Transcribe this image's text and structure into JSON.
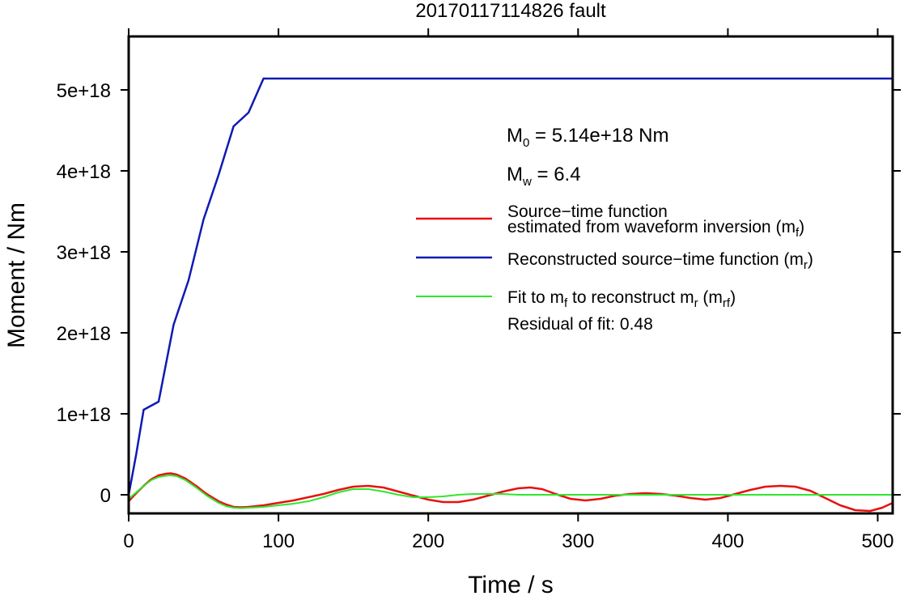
{
  "chart_data": {
    "type": "line",
    "title": "20170117114826 fault",
    "xlabel": "Time / s",
    "ylabel": "Moment / Nm",
    "xlim": [
      0,
      510
    ],
    "ylim": [
      -2.3e+17,
      5.66e+18
    ],
    "xticks": [
      0,
      100,
      200,
      300,
      400,
      500
    ],
    "xtick_labels": [
      "0",
      "100",
      "200",
      "300",
      "400",
      "500"
    ],
    "yticks": [
      0,
      1e+18,
      2e+18,
      3e+18,
      4e+18,
      5e+18
    ],
    "ytick_labels": [
      "0",
      "1e+18",
      "2e+18",
      "3e+18",
      "4e+18",
      "5e+18"
    ],
    "grid": false,
    "legend_position": "right",
    "annotations": {
      "m0": {
        "lead": "M",
        "sub": "0",
        "rest": " = 5.14e+18 Nm"
      },
      "mw": {
        "lead": "M",
        "sub": "w",
        "rest": " = 6.4"
      },
      "residual": "Residual of fit: 0.48"
    },
    "legend": [
      {
        "color": "#e8110f",
        "line1": "Source−time function",
        "line2": "estimated from waveform inversion (m",
        "sub": "f",
        "tail": ")"
      },
      {
        "color": "#0f1ab4",
        "line1": "Reconstructed source−time function (m",
        "sub": "r",
        "tail": ")"
      },
      {
        "color": "#2ee82e",
        "line1": "Fit to m",
        "sub1": "f",
        "mid": " to reconstruct m",
        "sub2": "r",
        "mid2": " (m",
        "sub3": "rf",
        "tail": ")"
      }
    ],
    "series": [
      {
        "name": "Source−time function estimated from waveform inversion (mf)",
        "color": "#e8110f",
        "x": [
          0,
          5,
          10,
          15,
          20,
          25,
          28,
          32,
          38,
          45,
          52,
          60,
          65,
          70,
          75,
          80,
          90,
          100,
          110,
          120,
          130,
          140,
          150,
          160,
          170,
          180,
          190,
          200,
          210,
          220,
          230,
          240,
          250,
          260,
          268,
          276,
          285,
          295,
          305,
          315,
          325,
          335,
          345,
          355,
          365,
          375,
          385,
          395,
          405,
          415,
          425,
          435,
          445,
          455,
          465,
          475,
          485,
          495,
          503,
          510
        ],
        "y": [
          -8e+16,
          2e+16,
          1.1e+17,
          1.9e+17,
          2.4e+17,
          2.6e+17,
          2.65e+17,
          2.5e+17,
          2e+17,
          1.1e+17,
          1e+16,
          -8e+16,
          -1.2e+17,
          -1.5e+17,
          -1.55e+17,
          -1.5e+17,
          -1.3e+17,
          -1e+17,
          -7e+16,
          -3e+16,
          1e+16,
          6e+16,
          1e+17,
          1.1e+17,
          9e+16,
          4e+16,
          -1e+16,
          -6e+16,
          -9e+16,
          -9e+16,
          -6e+16,
          -1e+16,
          4e+16,
          8e+16,
          9e+16,
          7e+16,
          1e+16,
          -5e+16,
          -7e+16,
          -5e+16,
          -1e+16,
          1e+16,
          2e+16,
          1e+16,
          -1e+16,
          -4e+16,
          -6e+16,
          -4e+16,
          1e+16,
          6e+16,
          1e+17,
          1.1e+17,
          1e+17,
          5e+16,
          -4e+16,
          -1.3e+17,
          -1.9e+17,
          -2e+17,
          -1.6e+17,
          -1e+17
        ]
      },
      {
        "name": "Reconstructed source−time function (mr)",
        "color": "#0f1ab4",
        "x": [
          0,
          5,
          10,
          20,
          30,
          40,
          50,
          60,
          70,
          80,
          90,
          100,
          200,
          300,
          400,
          510
        ],
        "y": [
          0,
          5e+17,
          1.05e+18,
          1.15e+18,
          2.1e+18,
          2.65e+18,
          3.4e+18,
          3.95e+18,
          4.55e+18,
          4.72e+18,
          5.14e+18,
          5.14e+18,
          5.14e+18,
          5.14e+18,
          5.14e+18,
          5.14e+18
        ]
      },
      {
        "name": "Fit to mf to reconstruct mr (mrf)",
        "color": "#2ee82e",
        "x": [
          0,
          5,
          10,
          15,
          20,
          25,
          28,
          32,
          38,
          45,
          52,
          60,
          65,
          70,
          75,
          80,
          90,
          100,
          110,
          120,
          130,
          140,
          150,
          160,
          170,
          180,
          190,
          200,
          210,
          220,
          230,
          240,
          250,
          260,
          270,
          280,
          300,
          340,
          400,
          450,
          510
        ],
        "y": [
          -5e+16,
          3e+16,
          1.1e+17,
          1.8e+17,
          2.2e+17,
          2.35e+17,
          2.4e+17,
          2.3e+17,
          1.8e+17,
          9e+16,
          -1e+16,
          -1e+17,
          -1.4e+17,
          -1.6e+17,
          -1.65e+17,
          -1.6e+17,
          -1.5e+17,
          -1.3e+17,
          -1.1e+17,
          -8e+16,
          -3e+16,
          3e+16,
          7e+16,
          7e+16,
          4e+16,
          0,
          -3e+16,
          -3e+16,
          -2e+16,
          0,
          1e+16,
          1e+16,
          1e+16,
          0,
          0,
          0,
          0,
          0,
          0,
          0,
          0
        ]
      }
    ]
  }
}
